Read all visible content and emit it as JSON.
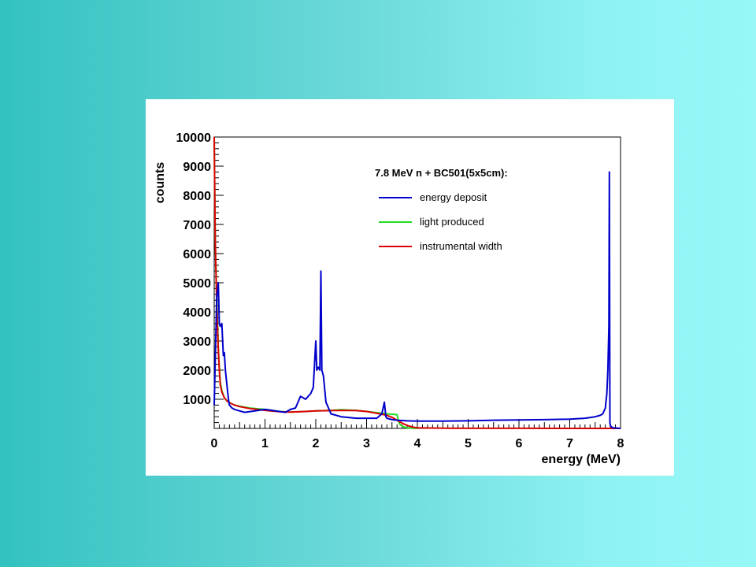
{
  "chart_data": {
    "type": "line",
    "title": "7.8 MeV n + BC501(5x5cm):",
    "xlabel": "energy (MeV)",
    "ylabel": "counts",
    "xlim": [
      0,
      8
    ],
    "ylim": [
      0,
      10000
    ],
    "x_ticks": [
      "0",
      "1",
      "2",
      "3",
      "4",
      "5",
      "6",
      "7",
      "8"
    ],
    "y_ticks": [
      "1000",
      "2000",
      "3000",
      "4000",
      "5000",
      "6000",
      "7000",
      "8000",
      "9000",
      "10000"
    ],
    "legend_position": "top-right",
    "series": [
      {
        "name": "energy deposit",
        "color": "#0000cc",
        "x": [
          0,
          0.05,
          0.08,
          0.1,
          0.12,
          0.15,
          0.18,
          0.2,
          0.22,
          0.25,
          0.28,
          0.3,
          0.35,
          0.4,
          0.5,
          0.6,
          0.8,
          1.0,
          1.2,
          1.4,
          1.5,
          1.6,
          1.7,
          1.8,
          1.9,
          1.95,
          2.0,
          2.02,
          2.05,
          2.08,
          2.1,
          2.12,
          2.15,
          2.2,
          2.3,
          2.5,
          2.8,
          3.0,
          3.2,
          3.3,
          3.35,
          3.38,
          3.4,
          3.5,
          3.6,
          3.8,
          4.0,
          4.5,
          5.0,
          5.5,
          6.0,
          6.5,
          7.0,
          7.3,
          7.5,
          7.6,
          7.65,
          7.7,
          7.73,
          7.75,
          7.77,
          7.78,
          7.79,
          7.8,
          7.82,
          7.85,
          8.0
        ],
        "y": [
          800,
          4500,
          5000,
          3600,
          3500,
          3600,
          2500,
          2600,
          2000,
          1500,
          1000,
          800,
          700,
          650,
          600,
          550,
          600,
          650,
          600,
          550,
          650,
          700,
          1100,
          1000,
          1200,
          1400,
          3000,
          2000,
          2100,
          2000,
          5400,
          2000,
          1800,
          900,
          500,
          400,
          350,
          350,
          350,
          500,
          900,
          400,
          350,
          300,
          280,
          260,
          250,
          250,
          260,
          280,
          290,
          300,
          320,
          350,
          400,
          450,
          500,
          700,
          1200,
          2000,
          3500,
          8800,
          200,
          100,
          50,
          20,
          0
        ]
      },
      {
        "name": "light produced",
        "color": "#22dd22",
        "x": [
          0,
          0.02,
          0.05,
          0.08,
          0.1,
          0.12,
          0.15,
          0.2,
          0.25,
          0.3,
          0.4,
          0.5,
          0.7,
          1.0,
          1.3,
          1.5,
          1.8,
          2.0,
          2.3,
          2.5,
          2.8,
          3.0,
          3.2,
          3.4,
          3.55,
          3.6,
          3.62,
          3.65,
          3.7,
          3.75,
          3.8,
          3.9,
          4.0
        ],
        "y": [
          10000,
          6500,
          4500,
          2800,
          2100,
          1600,
          1300,
          1050,
          950,
          880,
          800,
          760,
          700,
          650,
          580,
          560,
          580,
          600,
          620,
          640,
          620,
          580,
          540,
          500,
          480,
          470,
          300,
          150,
          80,
          40,
          20,
          5,
          0
        ]
      },
      {
        "name": "instrumental width",
        "color": "#dd0000",
        "x": [
          0,
          0.02,
          0.05,
          0.08,
          0.1,
          0.12,
          0.15,
          0.2,
          0.25,
          0.3,
          0.4,
          0.5,
          0.7,
          1.0,
          1.3,
          1.5,
          1.8,
          2.0,
          2.3,
          2.5,
          2.8,
          3.0,
          3.2,
          3.4,
          3.5,
          3.6,
          3.7,
          3.8,
          3.9,
          4.0,
          4.5,
          5.0,
          6.0,
          7.0,
          8.0
        ],
        "y": [
          10000,
          6500,
          4200,
          2700,
          2000,
          1500,
          1250,
          1050,
          950,
          880,
          800,
          750,
          680,
          620,
          570,
          560,
          580,
          600,
          610,
          620,
          610,
          580,
          520,
          450,
          380,
          280,
          180,
          100,
          50,
          20,
          8,
          4,
          2,
          1,
          0
        ]
      }
    ]
  }
}
